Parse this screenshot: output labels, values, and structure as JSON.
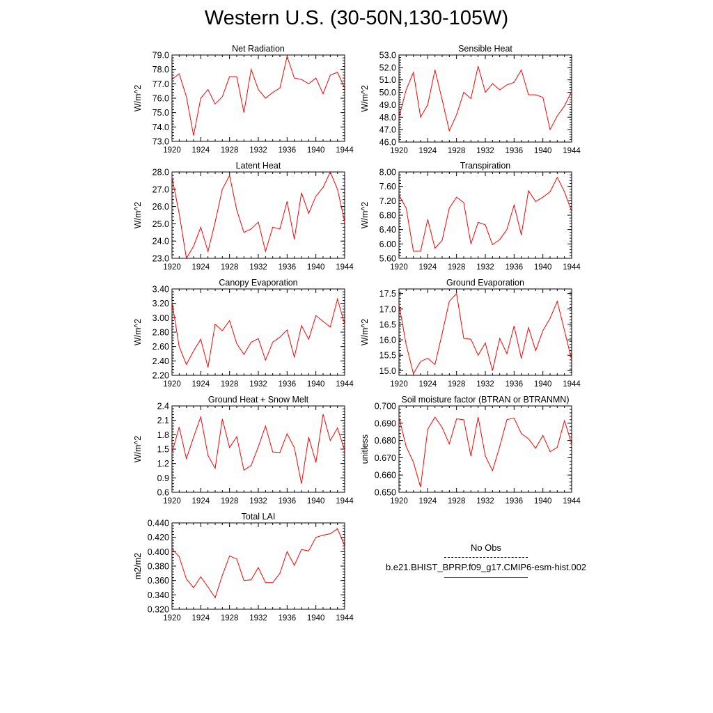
{
  "title": "Western U.S. (30-50N,130-105W)",
  "legend": {
    "obs_label": "No Obs",
    "case_label": "b.e21.BHIST_BPRP.f09_g17.CMIP6-esm-hist.002",
    "case_color": "#ff0000",
    "obs_color": "#000000"
  },
  "chart_data": [
    {
      "type": "line",
      "title": "Net Radiation",
      "ylabel": "W/m^2",
      "xlim": [
        1920,
        1944
      ],
      "ylim": [
        73.0,
        79.0
      ],
      "x_ticks": [
        "1920",
        "1924",
        "1928",
        "1932",
        "1936",
        "1940",
        "1944"
      ],
      "y_ticks": [
        "73.0",
        "74.0",
        "75.0",
        "76.0",
        "77.0",
        "78.0",
        "79.0"
      ],
      "x": [
        1920,
        1921,
        1922,
        1923,
        1924,
        1925,
        1926,
        1927,
        1928,
        1929,
        1930,
        1931,
        1932,
        1933,
        1934,
        1935,
        1936,
        1937,
        1938,
        1939,
        1940,
        1941,
        1942,
        1943,
        1944
      ],
      "values": [
        77.3,
        77.7,
        76.1,
        73.4,
        76.0,
        76.6,
        75.6,
        76.1,
        77.5,
        77.5,
        75.0,
        78.0,
        76.6,
        76.0,
        76.4,
        76.7,
        78.9,
        77.4,
        77.3,
        77.0,
        77.4,
        76.3,
        77.6,
        77.8,
        76.7
      ]
    },
    {
      "type": "line",
      "title": "Sensible Heat",
      "ylabel": "W/m^2",
      "xlim": [
        1920,
        1944
      ],
      "ylim": [
        46.0,
        53.0
      ],
      "x_ticks": [
        "1920",
        "1924",
        "1928",
        "1932",
        "1936",
        "1940",
        "1944"
      ],
      "y_ticks": [
        "46.0",
        "47.0",
        "48.0",
        "49.0",
        "50.0",
        "51.0",
        "52.0",
        "53.0"
      ],
      "x": [
        1920,
        1921,
        1922,
        1923,
        1924,
        1925,
        1926,
        1927,
        1928,
        1929,
        1930,
        1931,
        1932,
        1933,
        1934,
        1935,
        1936,
        1937,
        1938,
        1939,
        1940,
        1941,
        1942,
        1943,
        1944
      ],
      "values": [
        48.0,
        50.2,
        51.6,
        48.0,
        49.0,
        51.8,
        49.4,
        46.9,
        48.2,
        50.0,
        49.5,
        52.1,
        50.0,
        50.7,
        50.2,
        50.6,
        50.8,
        51.8,
        49.8,
        49.8,
        49.6,
        47.0,
        48.1,
        48.9,
        50.1
      ]
    },
    {
      "type": "line",
      "title": "Latent Heat",
      "ylabel": "W/m^2",
      "xlim": [
        1920,
        1944
      ],
      "ylim": [
        23.0,
        28.0
      ],
      "x_ticks": [
        "1920",
        "1924",
        "1928",
        "1932",
        "1936",
        "1940",
        "1944"
      ],
      "y_ticks": [
        "23.0",
        "24.0",
        "25.0",
        "26.0",
        "27.0",
        "28.0"
      ],
      "x": [
        1920,
        1921,
        1922,
        1923,
        1924,
        1925,
        1926,
        1927,
        1928,
        1929,
        1930,
        1931,
        1932,
        1933,
        1934,
        1935,
        1936,
        1937,
        1938,
        1939,
        1940,
        1941,
        1942,
        1943,
        1944
      ],
      "values": [
        27.7,
        25.6,
        23.0,
        23.7,
        24.8,
        23.4,
        25.1,
        27.0,
        27.8,
        25.8,
        24.5,
        24.7,
        25.1,
        23.4,
        24.8,
        24.7,
        26.3,
        24.1,
        26.8,
        25.6,
        26.6,
        27.1,
        28.0,
        27.0,
        25.1
      ]
    },
    {
      "type": "line",
      "title": "Transpiration",
      "ylabel": "W/m^2",
      "xlim": [
        1920,
        1944
      ],
      "ylim": [
        5.6,
        8.0
      ],
      "x_ticks": [
        "1920",
        "1924",
        "1928",
        "1932",
        "1936",
        "1940",
        "1944"
      ],
      "y_ticks": [
        "5.60",
        "6.00",
        "6.40",
        "6.80",
        "7.20",
        "7.60",
        "8.00"
      ],
      "x": [
        1920,
        1921,
        1922,
        1923,
        1924,
        1925,
        1926,
        1927,
        1928,
        1929,
        1930,
        1931,
        1932,
        1933,
        1934,
        1935,
        1936,
        1937,
        1938,
        1939,
        1940,
        1941,
        1942,
        1943,
        1944
      ],
      "values": [
        7.35,
        7.0,
        5.8,
        5.8,
        6.68,
        5.88,
        6.1,
        7.0,
        7.3,
        7.15,
        6.0,
        6.6,
        6.53,
        5.98,
        6.12,
        6.4,
        7.08,
        6.25,
        7.48,
        7.18,
        7.3,
        7.45,
        7.85,
        7.45,
        6.9
      ]
    },
    {
      "type": "line",
      "title": "Canopy Evaporation",
      "ylabel": "W/m^2",
      "xlim": [
        1920,
        1944
      ],
      "ylim": [
        2.2,
        3.4
      ],
      "x_ticks": [
        "1920",
        "1924",
        "1928",
        "1932",
        "1936",
        "1940",
        "1944"
      ],
      "y_ticks": [
        "2.20",
        "2.40",
        "2.60",
        "2.80",
        "3.00",
        "3.20",
        "3.40"
      ],
      "x": [
        1920,
        1921,
        1922,
        1923,
        1924,
        1925,
        1926,
        1927,
        1928,
        1929,
        1930,
        1931,
        1932,
        1933,
        1934,
        1935,
        1936,
        1937,
        1938,
        1939,
        1940,
        1941,
        1942,
        1943,
        1944
      ],
      "values": [
        3.22,
        2.6,
        2.35,
        2.54,
        2.7,
        2.31,
        2.91,
        2.82,
        2.96,
        2.64,
        2.49,
        2.66,
        2.71,
        2.41,
        2.66,
        2.73,
        2.83,
        2.45,
        2.89,
        2.7,
        3.03,
        2.95,
        2.87,
        3.26,
        2.91
      ]
    },
    {
      "type": "line",
      "title": "Ground Evaporation",
      "ylabel": "W/m^2",
      "xlim": [
        1920,
        1944
      ],
      "ylim": [
        14.85,
        17.65
      ],
      "x_ticks": [
        "1920",
        "1924",
        "1928",
        "1932",
        "1936",
        "1940",
        "1944"
      ],
      "y_ticks": [
        "15.0",
        "15.5",
        "16.0",
        "16.5",
        "17.0",
        "17.5"
      ],
      "x": [
        1920,
        1921,
        1922,
        1923,
        1924,
        1925,
        1926,
        1927,
        1928,
        1929,
        1930,
        1931,
        1932,
        1933,
        1934,
        1935,
        1936,
        1937,
        1938,
        1939,
        1940,
        1941,
        1942,
        1943,
        1944
      ],
      "values": [
        17.15,
        15.85,
        14.9,
        15.3,
        15.4,
        15.2,
        16.2,
        17.25,
        17.5,
        16.05,
        16.02,
        15.5,
        15.9,
        15.0,
        16.05,
        15.55,
        16.45,
        15.4,
        16.4,
        15.65,
        16.3,
        16.7,
        17.25,
        16.3,
        15.35
      ]
    },
    {
      "type": "line",
      "title": "Ground Heat + Snow Melt",
      "ylabel": "W/m^2",
      "xlim": [
        1920,
        1944
      ],
      "ylim": [
        0.6,
        2.4
      ],
      "x_ticks": [
        "1920",
        "1924",
        "1928",
        "1932",
        "1936",
        "1940",
        "1944"
      ],
      "y_ticks": [
        "0.6",
        "0.9",
        "1.2",
        "1.5",
        "1.8",
        "2.1",
        "2.4"
      ],
      "x": [
        1920,
        1921,
        1922,
        1923,
        1924,
        1925,
        1926,
        1927,
        1928,
        1929,
        1930,
        1931,
        1932,
        1933,
        1934,
        1935,
        1936,
        1937,
        1938,
        1939,
        1940,
        1941,
        1942,
        1943,
        1944
      ],
      "values": [
        1.42,
        1.96,
        1.3,
        1.75,
        2.17,
        1.37,
        1.1,
        2.13,
        1.53,
        1.76,
        1.06,
        1.16,
        1.55,
        1.98,
        1.44,
        1.43,
        1.82,
        1.53,
        0.78,
        1.75,
        1.22,
        2.23,
        1.68,
        1.94,
        1.47
      ]
    },
    {
      "type": "line",
      "title": "Soil moisture factor (BTRAN or BTRANMN)",
      "ylabel": "unitless",
      "xlim": [
        1920,
        1944
      ],
      "ylim": [
        0.65,
        0.7
      ],
      "x_ticks": [
        "1920",
        "1924",
        "1928",
        "1932",
        "1936",
        "1940",
        "1944"
      ],
      "y_ticks": [
        "0.650",
        "0.660",
        "0.670",
        "0.680",
        "0.690",
        "0.700"
      ],
      "x": [
        1920,
        1921,
        1922,
        1923,
        1924,
        1925,
        1926,
        1927,
        1928,
        1929,
        1930,
        1931,
        1932,
        1933,
        1934,
        1935,
        1936,
        1937,
        1938,
        1939,
        1940,
        1941,
        1942,
        1943,
        1944
      ],
      "values": [
        0.6935,
        0.6765,
        0.6675,
        0.653,
        0.6865,
        0.6935,
        0.6875,
        0.678,
        0.6925,
        0.692,
        0.671,
        0.6935,
        0.671,
        0.6625,
        0.6765,
        0.692,
        0.693,
        0.684,
        0.681,
        0.6755,
        0.683,
        0.6735,
        0.676,
        0.6915,
        0.678
      ]
    },
    {
      "type": "line",
      "title": "Total LAI",
      "ylabel": "m2/m2",
      "xlim": [
        1920,
        1944
      ],
      "ylim": [
        0.32,
        0.44
      ],
      "x_ticks": [
        "1920",
        "1924",
        "1928",
        "1932",
        "1936",
        "1940",
        "1944"
      ],
      "y_ticks": [
        "0.320",
        "0.340",
        "0.360",
        "0.380",
        "0.400",
        "0.420",
        "0.440"
      ],
      "x": [
        1920,
        1921,
        1922,
        1923,
        1924,
        1925,
        1926,
        1927,
        1928,
        1929,
        1930,
        1931,
        1932,
        1933,
        1934,
        1935,
        1936,
        1937,
        1938,
        1939,
        1940,
        1941,
        1942,
        1943,
        1944
      ],
      "values": [
        0.404,
        0.393,
        0.362,
        0.35,
        0.365,
        0.351,
        0.336,
        0.367,
        0.394,
        0.39,
        0.36,
        0.361,
        0.378,
        0.357,
        0.357,
        0.37,
        0.4,
        0.381,
        0.403,
        0.401,
        0.42,
        0.423,
        0.425,
        0.432,
        0.408
      ]
    }
  ]
}
